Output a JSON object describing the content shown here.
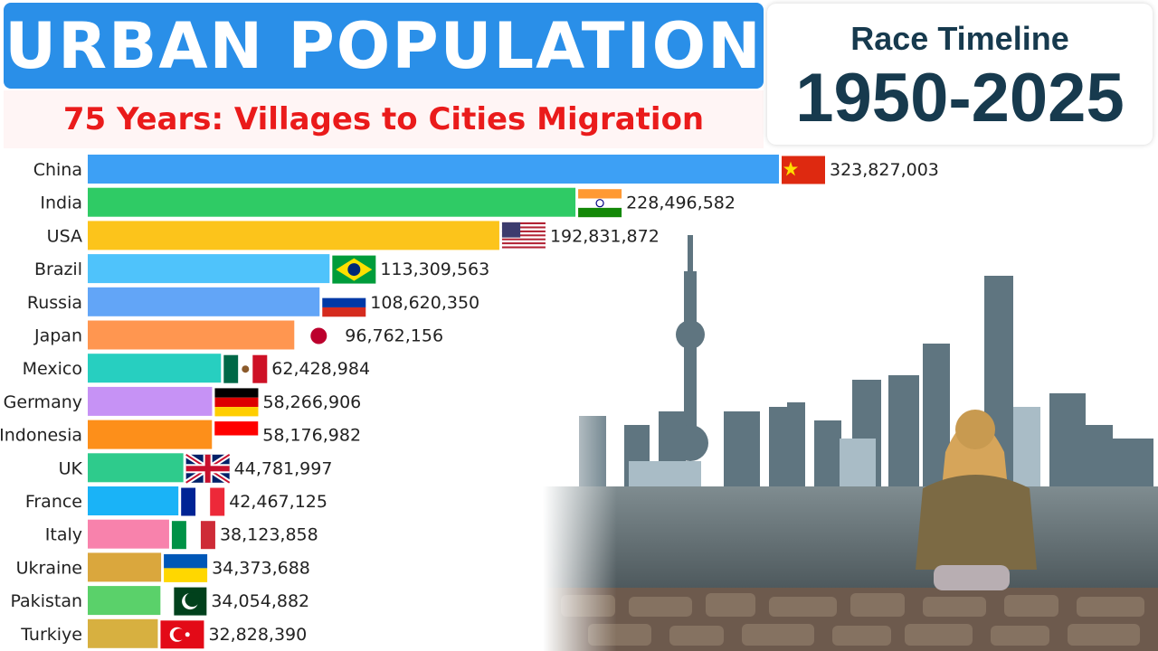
{
  "header": {
    "title": "URBAN POPULATION",
    "subtitle": "75 Years: Villages to Cities Migration"
  },
  "timeline": {
    "label": "Race Timeline",
    "years": "1950-2025"
  },
  "chart_data": {
    "type": "bar",
    "orientation": "horizontal",
    "categories": [
      "China",
      "India",
      "USA",
      "Brazil",
      "Russia",
      "Japan",
      "Mexico",
      "Germany",
      "Indonesia",
      "UK",
      "France",
      "Italy",
      "Ukraine",
      "Pakistan",
      "Turkiye"
    ],
    "values": [
      323827003,
      228496582,
      192831872,
      113309563,
      108620350,
      96762156,
      62428984,
      58266906,
      58176982,
      44781997,
      42467125,
      38123858,
      34373688,
      34054882,
      32828390
    ],
    "value_labels": [
      "323,827,003",
      "228,496,582",
      "192,831,872",
      "113,309,563",
      "108,620,350",
      "96,762,156",
      "62,428,984",
      "58,266,906",
      "58,176,982",
      "44,781,997",
      "42,467,125",
      "38,123,858",
      "34,373,688",
      "34,054,882",
      "32,828,390"
    ],
    "colors": [
      "#3da0f5",
      "#2fcb65",
      "#fcc41b",
      "#4fc3fb",
      "#62a5f7",
      "#ff9650",
      "#27cfc0",
      "#c692f5",
      "#fd8f1a",
      "#2ecb8c",
      "#1ab3f7",
      "#f882ac",
      "#daa73d",
      "#5ad16a",
      "#d7b040"
    ],
    "flags": [
      "china-flag",
      "india-flag",
      "usa-flag",
      "brazil-flag",
      "russia-flag",
      "japan-flag",
      "mexico-flag",
      "germany-flag",
      "indonesia-flag",
      "uk-flag",
      "france-flag",
      "italy-flag",
      "ukraine-flag",
      "pakistan-flag",
      "turkiye-flag"
    ],
    "grid": false,
    "legend": "none"
  }
}
